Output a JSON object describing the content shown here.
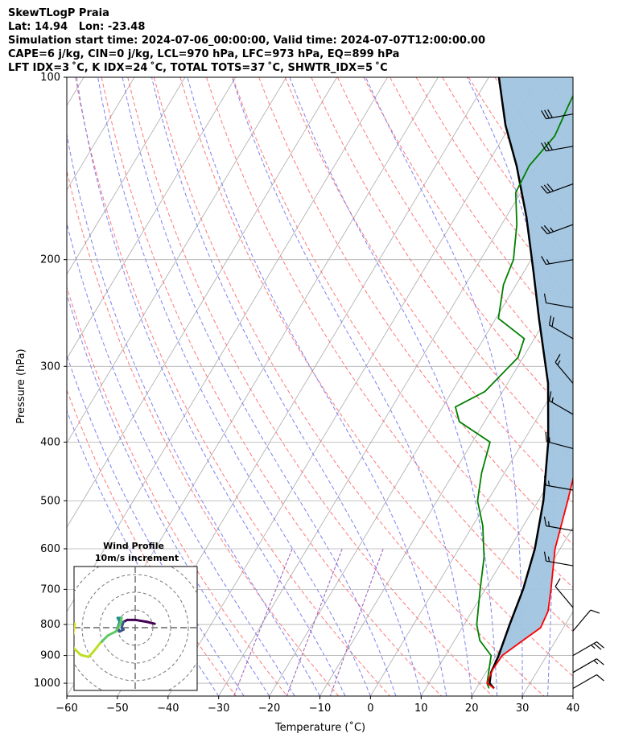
{
  "header": {
    "line1": "SkewTLogP Praia",
    "line2": "Lat: 14.94   Lon: -23.48",
    "line3": "Simulation start time: 2024-07-06_00:00:00, Valid time: 2024-07-07T12:00:00.00",
    "line4": "CAPE=6 j/kg, CIN=0 j/kg, LCL=970 hPa, LFC=973 hPa, EQ=899 hPa",
    "line5": "LFT IDX=3 ˚C, K IDX=24 ˚C, TOTAL TOTS=37 ˚C, SHWTR_IDX=5 ˚C"
  },
  "chart_data": [
    {
      "type": "line",
      "subtype": "skew-t log-p",
      "xlabel": "Temperature (˚C)",
      "ylabel": "Pressure (hPa)",
      "xlim": [
        -60,
        40
      ],
      "ylim": [
        1050,
        100
      ],
      "yscale": "log",
      "xticks": [
        -60,
        -50,
        -40,
        -30,
        -20,
        -10,
        0,
        10,
        20,
        30,
        40
      ],
      "yticks": [
        100,
        200,
        300,
        400,
        500,
        600,
        700,
        800,
        900,
        1000
      ],
      "grid": true,
      "colors": {
        "temperature": "#ff0000",
        "dewpoint": "#008000",
        "parcel": "#000000",
        "cape_fill": "#a0c4e0",
        "dry_adiabats": "#ff6060",
        "moist_adiabats": "#6f74f0",
        "mixing_ratio": "#9b59b6",
        "isotherms": "#aaaaaa"
      },
      "series": [
        {
          "key": "temperature",
          "points": [
            [
              23.5,
              1020
            ],
            [
              21.5,
              1000
            ],
            [
              21.0,
              950
            ],
            [
              21.2,
              900
            ],
            [
              23.5,
              850
            ],
            [
              25.5,
              810
            ],
            [
              25.0,
              760
            ],
            [
              23.0,
              700
            ],
            [
              19.0,
              600
            ],
            [
              15.8,
              500
            ],
            [
              13.0,
              430
            ],
            [
              9.0,
              360
            ],
            [
              5.0,
              300
            ],
            [
              1.0,
              260
            ],
            [
              -5.0,
              220
            ],
            [
              -10.5,
              190
            ],
            [
              -14.5,
              170
            ],
            [
              -18.5,
              150
            ],
            [
              -21.5,
              135
            ],
            [
              -26.0,
              120
            ],
            [
              -29.0,
              110
            ],
            [
              -31.0,
              100
            ]
          ]
        },
        {
          "key": "dewpoint",
          "points": [
            [
              22.5,
              1020
            ],
            [
              21.5,
              1000
            ],
            [
              19.0,
              900
            ],
            [
              15.0,
              850
            ],
            [
              12.5,
              800
            ],
            [
              9.0,
              700
            ],
            [
              6.0,
              620
            ],
            [
              2.0,
              550
            ],
            [
              -2.0,
              500
            ],
            [
              -4.5,
              450
            ],
            [
              -6.5,
              400
            ],
            [
              -15.0,
              370
            ],
            [
              -17.5,
              350
            ],
            [
              -13.5,
              330
            ],
            [
              -11.0,
              290
            ],
            [
              -12.0,
              270
            ],
            [
              -19.5,
              250
            ],
            [
              -22.5,
              220
            ],
            [
              -23.5,
              200
            ],
            [
              -27.0,
              175
            ],
            [
              -31.0,
              155
            ],
            [
              -31.5,
              140
            ],
            [
              -30.0,
              125
            ],
            [
              -31.0,
              110
            ],
            [
              -31.5,
              100
            ]
          ]
        },
        {
          "key": "parcel",
          "points": [
            [
              23.5,
              1020
            ],
            [
              22.0,
              1000
            ],
            [
              21.0,
              960
            ],
            [
              20.5,
              900
            ],
            [
              19.0,
              800
            ],
            [
              17.5,
              700
            ],
            [
              15.0,
              600
            ],
            [
              11.0,
              500
            ],
            [
              5.0,
              400
            ],
            [
              -2.0,
              320
            ],
            [
              -11.5,
              250
            ],
            [
              -18.0,
              210
            ],
            [
              -26.0,
              170
            ],
            [
              -34.0,
              140
            ],
            [
              -41.0,
              120
            ],
            [
              -48.0,
              100
            ]
          ]
        }
      ],
      "wind_barbs": [
        {
          "p": 1020,
          "speed_kt": 10,
          "dir_deg": 60
        },
        {
          "p": 960,
          "speed_kt": 15,
          "dir_deg": 60
        },
        {
          "p": 900,
          "speed_kt": 25,
          "dir_deg": 60
        },
        {
          "p": 820,
          "speed_kt": 10,
          "dir_deg": 40
        },
        {
          "p": 750,
          "speed_kt": 10,
          "dir_deg": 320
        },
        {
          "p": 640,
          "speed_kt": 15,
          "dir_deg": 280
        },
        {
          "p": 560,
          "speed_kt": 15,
          "dir_deg": 280
        },
        {
          "p": 480,
          "speed_kt": 15,
          "dir_deg": 280
        },
        {
          "p": 410,
          "speed_kt": 15,
          "dir_deg": 285
        },
        {
          "p": 360,
          "speed_kt": 15,
          "dir_deg": 300
        },
        {
          "p": 320,
          "speed_kt": 15,
          "dir_deg": 320
        },
        {
          "p": 270,
          "speed_kt": 20,
          "dir_deg": 300
        },
        {
          "p": 240,
          "speed_kt": 10,
          "dir_deg": 280
        },
        {
          "p": 200,
          "speed_kt": 15,
          "dir_deg": 260
        },
        {
          "p": 175,
          "speed_kt": 25,
          "dir_deg": 250
        },
        {
          "p": 150,
          "speed_kt": 30,
          "dir_deg": 250
        },
        {
          "p": 130,
          "speed_kt": 30,
          "dir_deg": 260
        },
        {
          "p": 115,
          "speed_kt": 30,
          "dir_deg": 260
        }
      ]
    },
    {
      "type": "line",
      "subtype": "hodograph",
      "title": "Wind Profile",
      "subtitle": "10m/s increment",
      "ring_step_ms": 10,
      "points": [
        [
          5.0,
          1.0
        ],
        [
          3.0,
          1.5
        ],
        [
          0.0,
          2.0
        ],
        [
          -2.0,
          2.0
        ],
        [
          -3.0,
          1.5
        ],
        [
          -3.5,
          0.0
        ],
        [
          -3.0,
          -0.5
        ],
        [
          -4.0,
          -1.0
        ],
        [
          -4.5,
          0.0
        ],
        [
          -4.0,
          1.5
        ],
        [
          -4.5,
          2.5
        ],
        [
          -3.5,
          2.5
        ],
        [
          -3.8,
          1.0
        ],
        [
          -5.0,
          -1.0
        ],
        [
          -7.0,
          -2.0
        ],
        [
          -9.0,
          -4.0
        ],
        [
          -11.0,
          -6.5
        ],
        [
          -12.0,
          -7.5
        ],
        [
          -14.0,
          -7.0
        ],
        [
          -16.0,
          -5.0
        ],
        [
          -16.0,
          -2.0
        ],
        [
          -15.5,
          1.0
        ]
      ]
    }
  ]
}
